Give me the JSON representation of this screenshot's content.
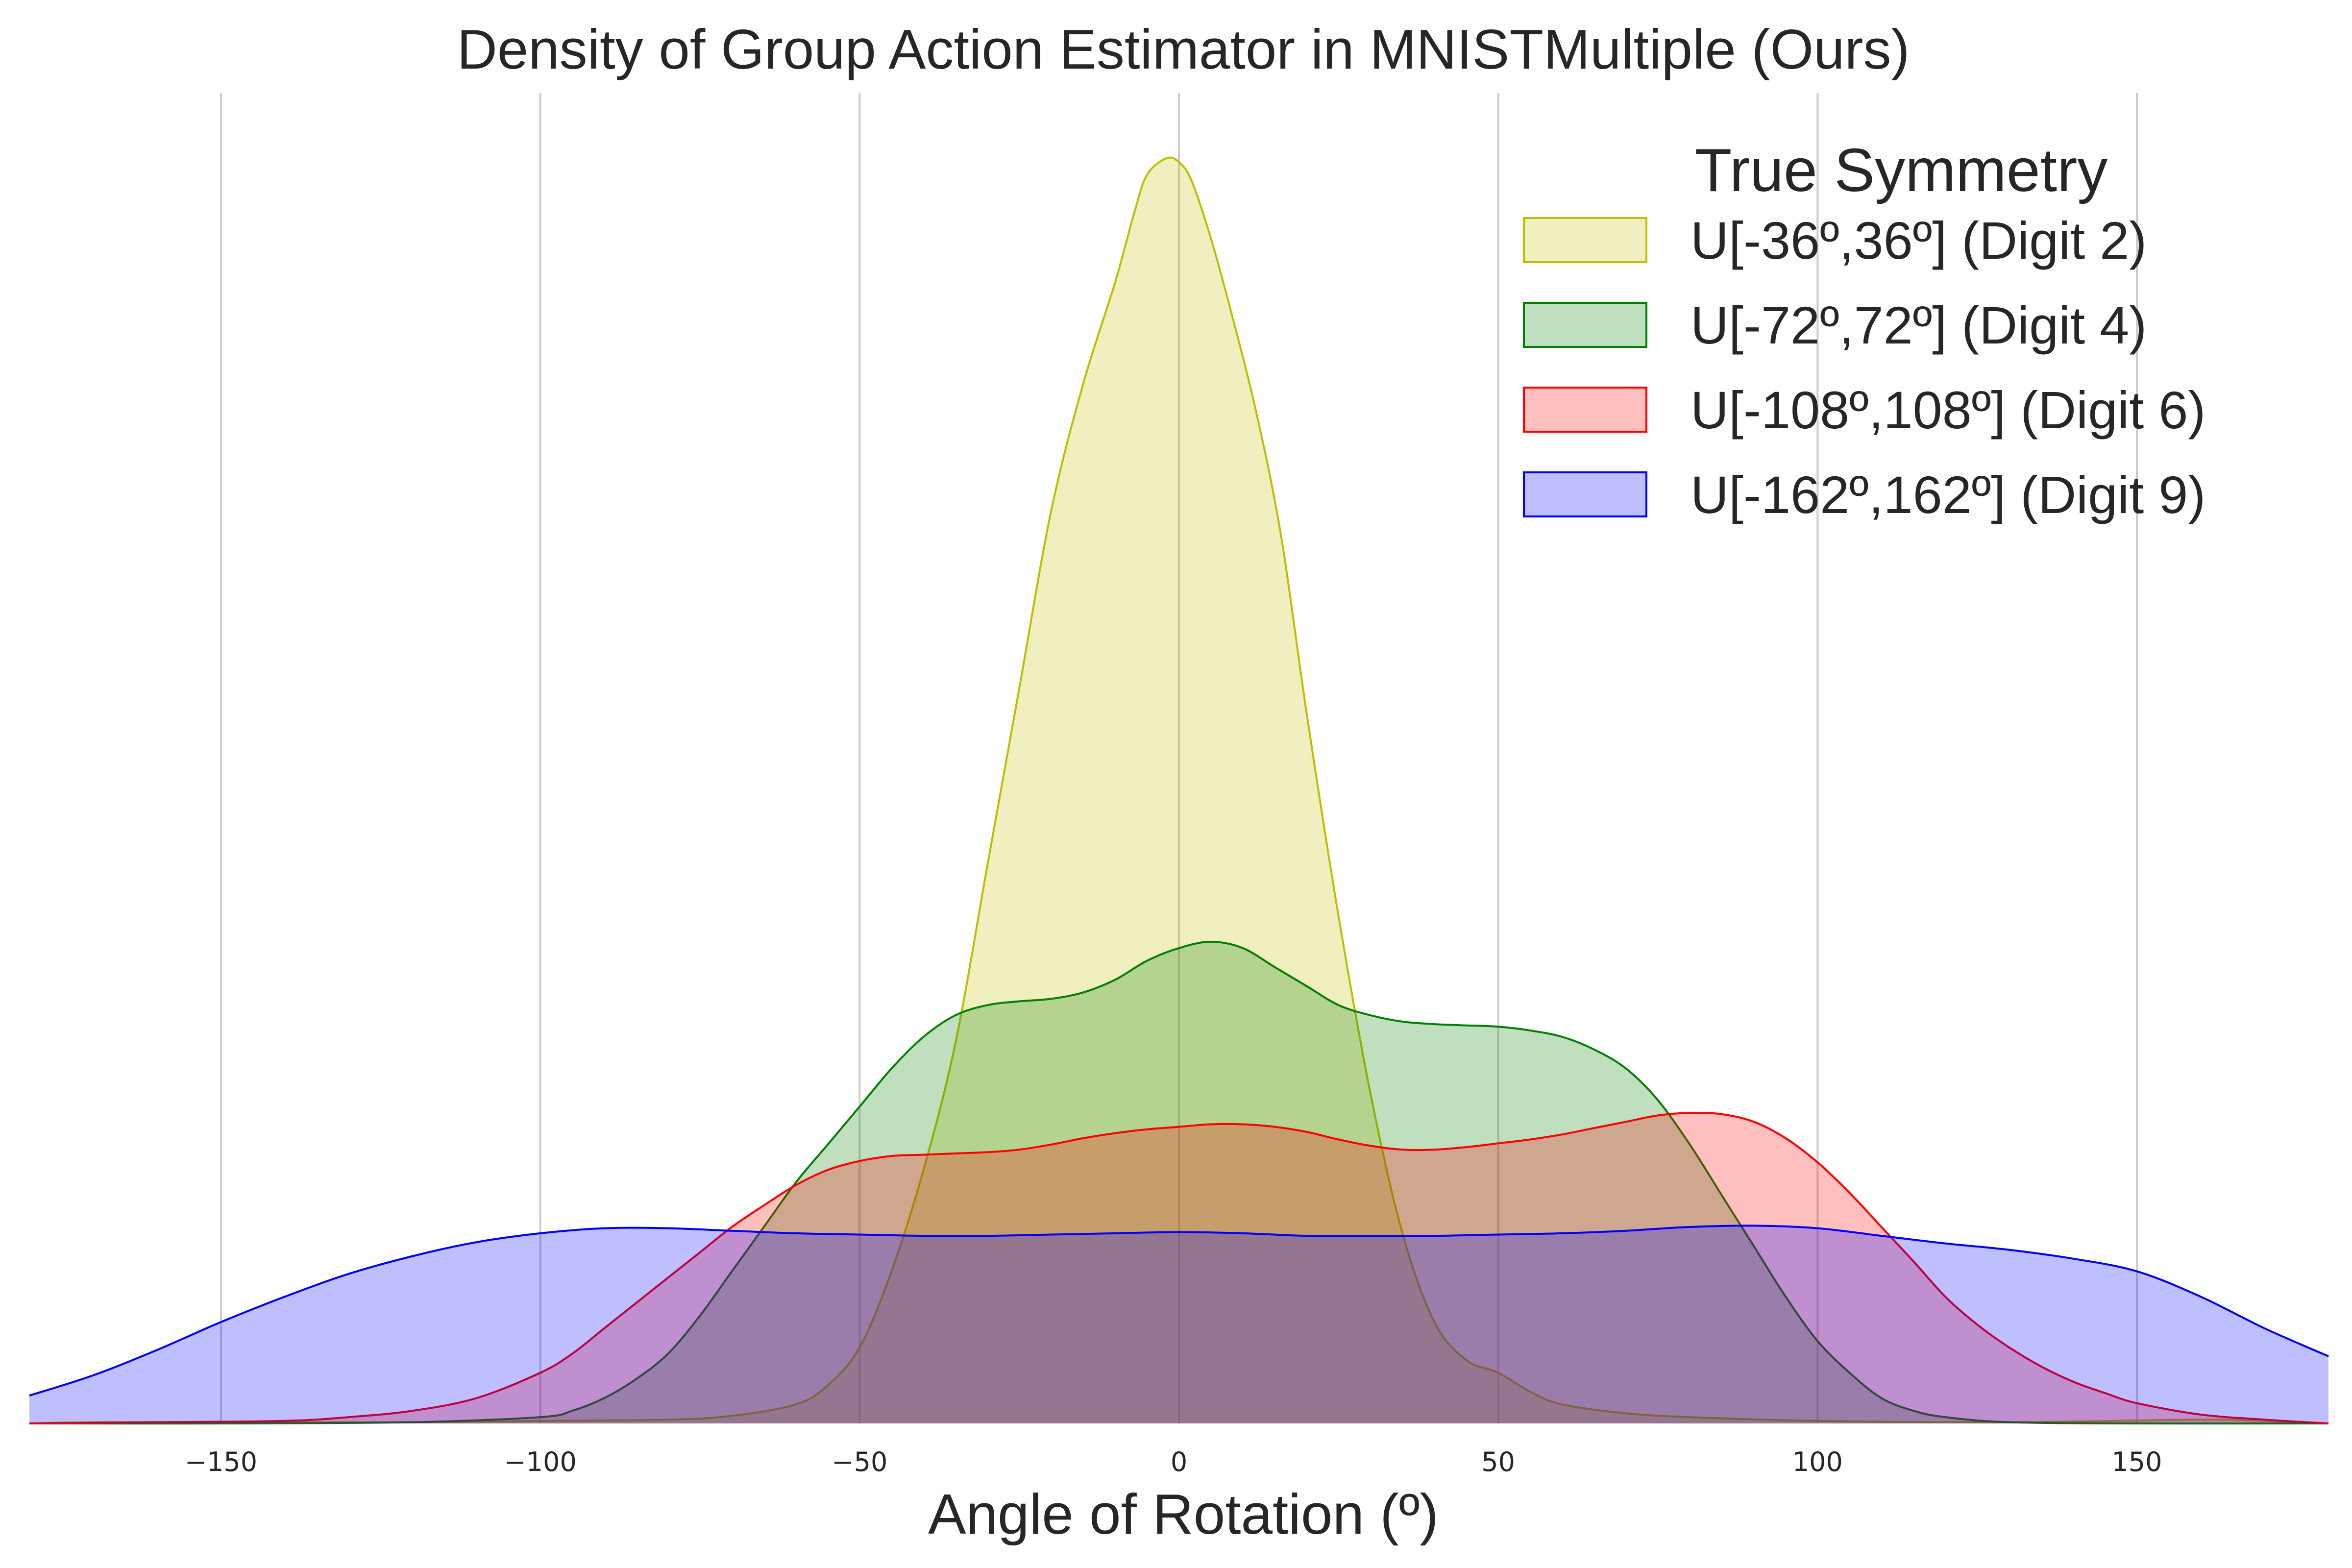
{
  "chart_data": {
    "type": "area",
    "title": "Density of Group Action Estimator in MNISTMultiple (Ours)",
    "xlabel": "Angle of Rotation (º)",
    "ylabel": "",
    "xlim": [
      -180,
      180
    ],
    "ylim": [
      0,
      1.0
    ],
    "xticks": [
      -150,
      -100,
      -50,
      0,
      50,
      100,
      150
    ],
    "xtick_labels": [
      "−150",
      "−100",
      "−50",
      "0",
      "50",
      "100",
      "150"
    ],
    "grid": "vertical",
    "legend": {
      "title": "True Symmetry",
      "placement": "top-right"
    },
    "series": [
      {
        "name": "U[-36º,36º] (Digit 2)",
        "color": "#bfbf00",
        "fill": "#bfbf00",
        "fill_opacity": 0.25,
        "points": [
          [
            -180,
            0.0
          ],
          [
            -170,
            0.001
          ],
          [
            -150,
            0.001
          ],
          [
            -120,
            0.001
          ],
          [
            -100,
            0.002
          ],
          [
            -80,
            0.003
          ],
          [
            -70,
            0.006
          ],
          [
            -60,
            0.015
          ],
          [
            -55,
            0.03
          ],
          [
            -50,
            0.06
          ],
          [
            -45,
            0.12
          ],
          [
            -40,
            0.2
          ],
          [
            -35,
            0.3
          ],
          [
            -30,
            0.44
          ],
          [
            -25,
            0.58
          ],
          [
            -20,
            0.72
          ],
          [
            -15,
            0.82
          ],
          [
            -10,
            0.9
          ],
          [
            -7,
            0.955
          ],
          [
            -5,
            0.985
          ],
          [
            -2,
            0.998
          ],
          [
            0,
            0.995
          ],
          [
            2,
            0.98
          ],
          [
            5,
            0.935
          ],
          [
            8,
            0.88
          ],
          [
            12,
            0.8
          ],
          [
            16,
            0.7
          ],
          [
            20,
            0.56
          ],
          [
            25,
            0.4
          ],
          [
            30,
            0.26
          ],
          [
            35,
            0.15
          ],
          [
            40,
            0.08
          ],
          [
            45,
            0.05
          ],
          [
            50,
            0.04
          ],
          [
            55,
            0.025
          ],
          [
            60,
            0.015
          ],
          [
            70,
            0.008
          ],
          [
            80,
            0.005
          ],
          [
            100,
            0.002
          ],
          [
            130,
            0.001
          ],
          [
            160,
            0.003
          ],
          [
            170,
            0.002
          ],
          [
            180,
            0.0
          ]
        ]
      },
      {
        "name": "U[-72º,72º] (Digit 4)",
        "color": "#008000",
        "fill": "#008000",
        "fill_opacity": 0.25,
        "points": [
          [
            -180,
            0.0
          ],
          [
            -150,
            0.0
          ],
          [
            -120,
            0.001
          ],
          [
            -100,
            0.005
          ],
          [
            -95,
            0.01
          ],
          [
            -90,
            0.02
          ],
          [
            -85,
            0.035
          ],
          [
            -80,
            0.055
          ],
          [
            -75,
            0.085
          ],
          [
            -70,
            0.12
          ],
          [
            -65,
            0.155
          ],
          [
            -60,
            0.19
          ],
          [
            -55,
            0.22
          ],
          [
            -50,
            0.25
          ],
          [
            -45,
            0.28
          ],
          [
            -40,
            0.305
          ],
          [
            -35,
            0.322
          ],
          [
            -30,
            0.33
          ],
          [
            -25,
            0.333
          ],
          [
            -20,
            0.335
          ],
          [
            -15,
            0.34
          ],
          [
            -10,
            0.35
          ],
          [
            -5,
            0.365
          ],
          [
            0,
            0.375
          ],
          [
            5,
            0.38
          ],
          [
            10,
            0.375
          ],
          [
            15,
            0.36
          ],
          [
            20,
            0.345
          ],
          [
            25,
            0.33
          ],
          [
            30,
            0.322
          ],
          [
            35,
            0.317
          ],
          [
            40,
            0.315
          ],
          [
            45,
            0.314
          ],
          [
            50,
            0.313
          ],
          [
            55,
            0.31
          ],
          [
            60,
            0.305
          ],
          [
            65,
            0.295
          ],
          [
            70,
            0.28
          ],
          [
            75,
            0.255
          ],
          [
            80,
            0.22
          ],
          [
            85,
            0.18
          ],
          [
            90,
            0.14
          ],
          [
            95,
            0.1
          ],
          [
            100,
            0.065
          ],
          [
            105,
            0.04
          ],
          [
            110,
            0.02
          ],
          [
            115,
            0.01
          ],
          [
            120,
            0.005
          ],
          [
            130,
            0.001
          ],
          [
            150,
            0.0
          ],
          [
            180,
            0.0
          ]
        ]
      },
      {
        "name": "U[-108º,108º] (Digit 6)",
        "color": "#ff0000",
        "fill": "#ff0000",
        "fill_opacity": 0.25,
        "points": [
          [
            -180,
            0.0
          ],
          [
            -160,
            0.001
          ],
          [
            -140,
            0.002
          ],
          [
            -130,
            0.005
          ],
          [
            -120,
            0.01
          ],
          [
            -110,
            0.02
          ],
          [
            -100,
            0.04
          ],
          [
            -95,
            0.055
          ],
          [
            -90,
            0.075
          ],
          [
            -85,
            0.095
          ],
          [
            -80,
            0.115
          ],
          [
            -75,
            0.135
          ],
          [
            -70,
            0.155
          ],
          [
            -65,
            0.172
          ],
          [
            -60,
            0.188
          ],
          [
            -55,
            0.2
          ],
          [
            -50,
            0.207
          ],
          [
            -45,
            0.211
          ],
          [
            -40,
            0.212
          ],
          [
            -35,
            0.213
          ],
          [
            -30,
            0.214
          ],
          [
            -25,
            0.216
          ],
          [
            -20,
            0.22
          ],
          [
            -15,
            0.225
          ],
          [
            -10,
            0.229
          ],
          [
            -5,
            0.232
          ],
          [
            0,
            0.234
          ],
          [
            5,
            0.236
          ],
          [
            10,
            0.236
          ],
          [
            15,
            0.234
          ],
          [
            20,
            0.23
          ],
          [
            25,
            0.224
          ],
          [
            30,
            0.219
          ],
          [
            35,
            0.216
          ],
          [
            40,
            0.216
          ],
          [
            45,
            0.218
          ],
          [
            50,
            0.221
          ],
          [
            55,
            0.224
          ],
          [
            60,
            0.228
          ],
          [
            65,
            0.233
          ],
          [
            70,
            0.238
          ],
          [
            75,
            0.243
          ],
          [
            80,
            0.245
          ],
          [
            85,
            0.244
          ],
          [
            90,
            0.238
          ],
          [
            95,
            0.225
          ],
          [
            100,
            0.206
          ],
          [
            105,
            0.182
          ],
          [
            110,
            0.155
          ],
          [
            115,
            0.128
          ],
          [
            120,
            0.1
          ],
          [
            125,
            0.078
          ],
          [
            130,
            0.06
          ],
          [
            135,
            0.045
          ],
          [
            140,
            0.033
          ],
          [
            145,
            0.024
          ],
          [
            150,
            0.016
          ],
          [
            160,
            0.007
          ],
          [
            170,
            0.003
          ],
          [
            180,
            0.0
          ]
        ]
      },
      {
        "name": "U[-162º,162º] (Digit 9)",
        "color": "#0000ff",
        "fill": "#0000ff",
        "fill_opacity": 0.25,
        "points": [
          [
            -180,
            0.022
          ],
          [
            -170,
            0.038
          ],
          [
            -160,
            0.058
          ],
          [
            -150,
            0.08
          ],
          [
            -140,
            0.1
          ],
          [
            -130,
            0.118
          ],
          [
            -120,
            0.132
          ],
          [
            -110,
            0.143
          ],
          [
            -100,
            0.15
          ],
          [
            -90,
            0.154
          ],
          [
            -80,
            0.154
          ],
          [
            -70,
            0.152
          ],
          [
            -60,
            0.15
          ],
          [
            -50,
            0.149
          ],
          [
            -40,
            0.148
          ],
          [
            -30,
            0.148
          ],
          [
            -20,
            0.149
          ],
          [
            -10,
            0.15
          ],
          [
            0,
            0.151
          ],
          [
            10,
            0.15
          ],
          [
            20,
            0.148
          ],
          [
            30,
            0.148
          ],
          [
            40,
            0.148
          ],
          [
            50,
            0.149
          ],
          [
            60,
            0.15
          ],
          [
            70,
            0.152
          ],
          [
            80,
            0.155
          ],
          [
            90,
            0.156
          ],
          [
            100,
            0.154
          ],
          [
            110,
            0.148
          ],
          [
            120,
            0.142
          ],
          [
            130,
            0.137
          ],
          [
            140,
            0.13
          ],
          [
            150,
            0.12
          ],
          [
            160,
            0.1
          ],
          [
            170,
            0.075
          ],
          [
            180,
            0.053
          ]
        ]
      }
    ]
  }
}
